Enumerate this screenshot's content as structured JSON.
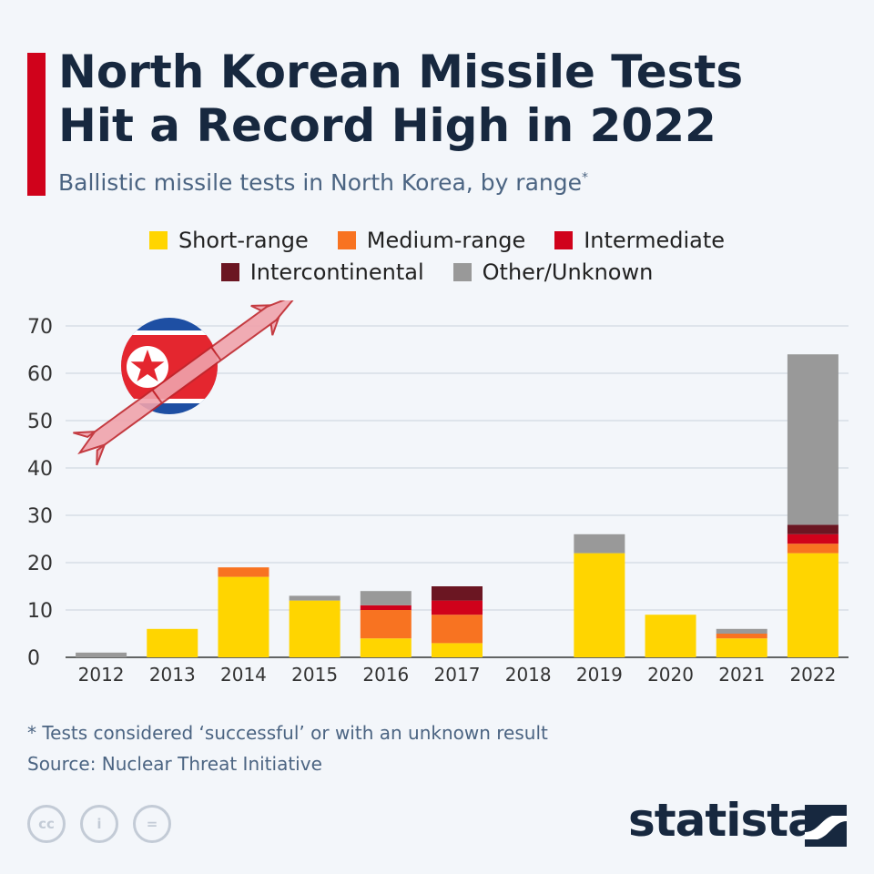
{
  "title_line1": "North Korean Missile Tests",
  "title_line2": "Hit a Record High in 2022",
  "subtitle": "Ballistic missile tests in North Korea, by range",
  "subtitle_mark": "*",
  "legend": [
    {
      "label": "Short-range",
      "color": "#ffd500"
    },
    {
      "label": "Medium-range",
      "color": "#f87321"
    },
    {
      "label": "Intermediate",
      "color": "#d0021b"
    },
    {
      "label": "Intercontinental",
      "color": "#6b1622"
    },
    {
      "label": "Other/Unknown",
      "color": "#999999"
    }
  ],
  "chart_data": {
    "type": "bar",
    "stacked": true,
    "title": "North Korean Missile Tests Hit a Record High in 2022",
    "xlabel": "",
    "ylabel": "",
    "ylim": [
      0,
      70
    ],
    "yticks": [
      0,
      10,
      20,
      30,
      40,
      50,
      60,
      70
    ],
    "grid": true,
    "categories": [
      "2012",
      "2013",
      "2014",
      "2015",
      "2016",
      "2017",
      "2018",
      "2019",
      "2020",
      "2021",
      "2022"
    ],
    "series": [
      {
        "name": "Short-range",
        "color": "#ffd500",
        "values": [
          0,
          6,
          17,
          12,
          4,
          3,
          0,
          22,
          9,
          4,
          22
        ]
      },
      {
        "name": "Medium-range",
        "color": "#f87321",
        "values": [
          0,
          0,
          2,
          0,
          6,
          6,
          0,
          0,
          0,
          1,
          2
        ]
      },
      {
        "name": "Intermediate",
        "color": "#d0021b",
        "values": [
          0,
          0,
          0,
          0,
          1,
          3,
          0,
          0,
          0,
          0,
          2
        ]
      },
      {
        "name": "Intercontinental",
        "color": "#6b1622",
        "values": [
          0,
          0,
          0,
          0,
          0,
          3,
          0,
          0,
          0,
          0,
          2
        ]
      },
      {
        "name": "Other/Unknown",
        "color": "#999999",
        "values": [
          1,
          0,
          0,
          1,
          3,
          0,
          0,
          4,
          0,
          1,
          36
        ]
      }
    ]
  },
  "footnote": "* Tests considered ‘successful’ or with an unknown result",
  "source": "Source: Nuclear Threat Initiative",
  "license_icons": [
    "cc",
    "i",
    "="
  ],
  "brand": "statista"
}
